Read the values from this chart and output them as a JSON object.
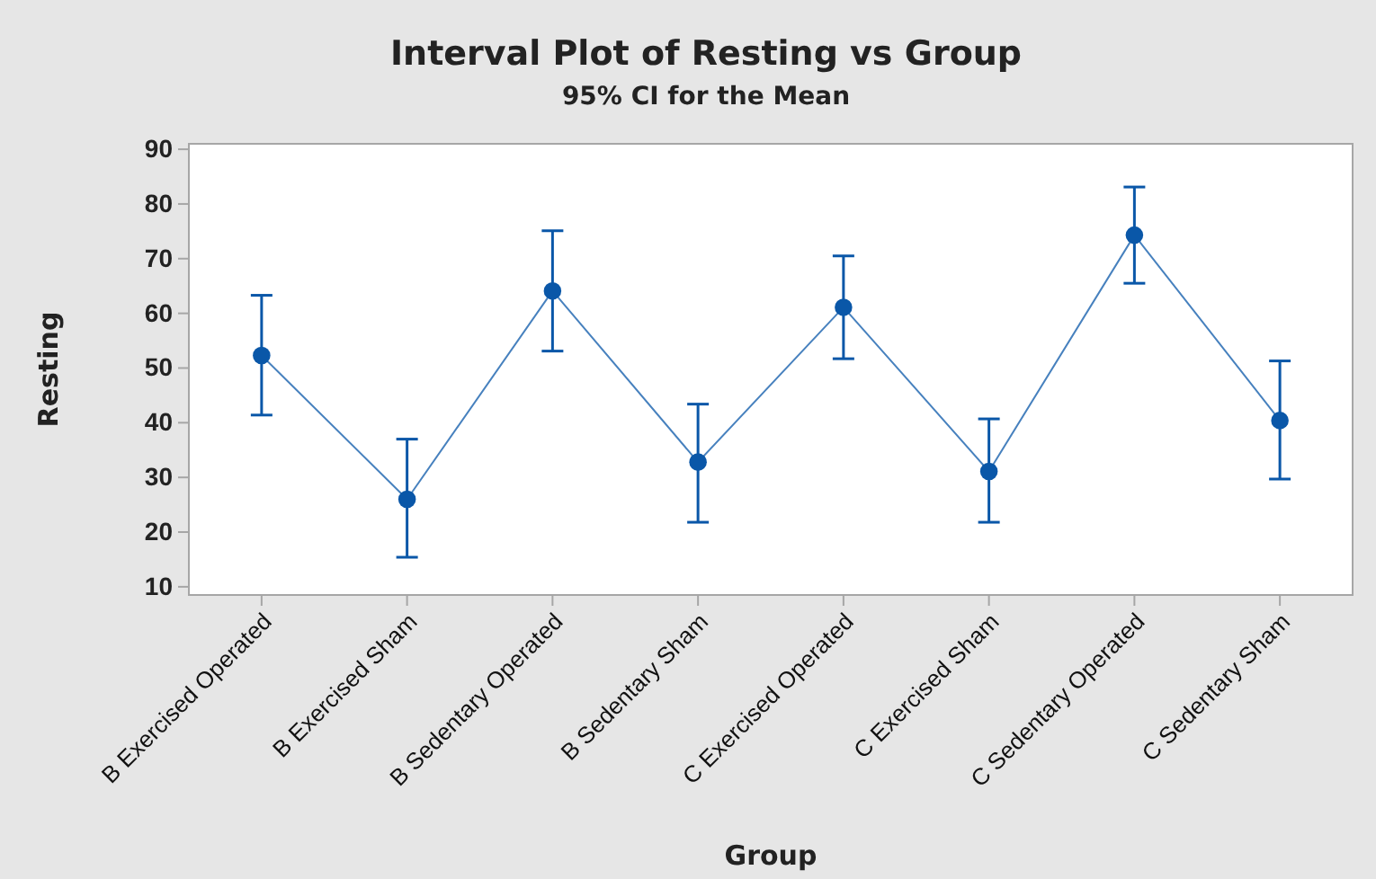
{
  "chart_data": {
    "type": "line",
    "title": "Interval Plot of Resting vs Group",
    "subtitle": "95% CI for the Mean",
    "xlabel": "Group",
    "ylabel": "Resting",
    "categories": [
      "B Exercised Operated",
      "B Exercised Sham",
      "B Sedentary Operated",
      "B Sedentary Sham",
      "C Exercised Operated",
      "C Exercised Sham",
      "C Sedentary Operated",
      "C Sedentary Sham"
    ],
    "series": [
      {
        "color": "#0a57a8",
        "values": [
          52.3,
          26,
          64.1,
          32.8,
          61.1,
          31.1,
          74.3,
          40.4
        ],
        "errors": [
          [
            41.4,
            63.3
          ],
          [
            15.4,
            37
          ],
          [
            53.1,
            75.1
          ],
          [
            21.8,
            43.4
          ],
          [
            51.7,
            70.5
          ],
          [
            21.8,
            40.7
          ],
          [
            65.5,
            83.1
          ],
          [
            29.7,
            51.3
          ]
        ]
      }
    ],
    "ylim": [
      8.5,
      91
    ],
    "yticks": [
      10,
      20,
      30,
      40,
      50,
      60,
      70,
      80,
      90
    ],
    "grid": false,
    "marker": "circle",
    "line_style": "solid"
  }
}
